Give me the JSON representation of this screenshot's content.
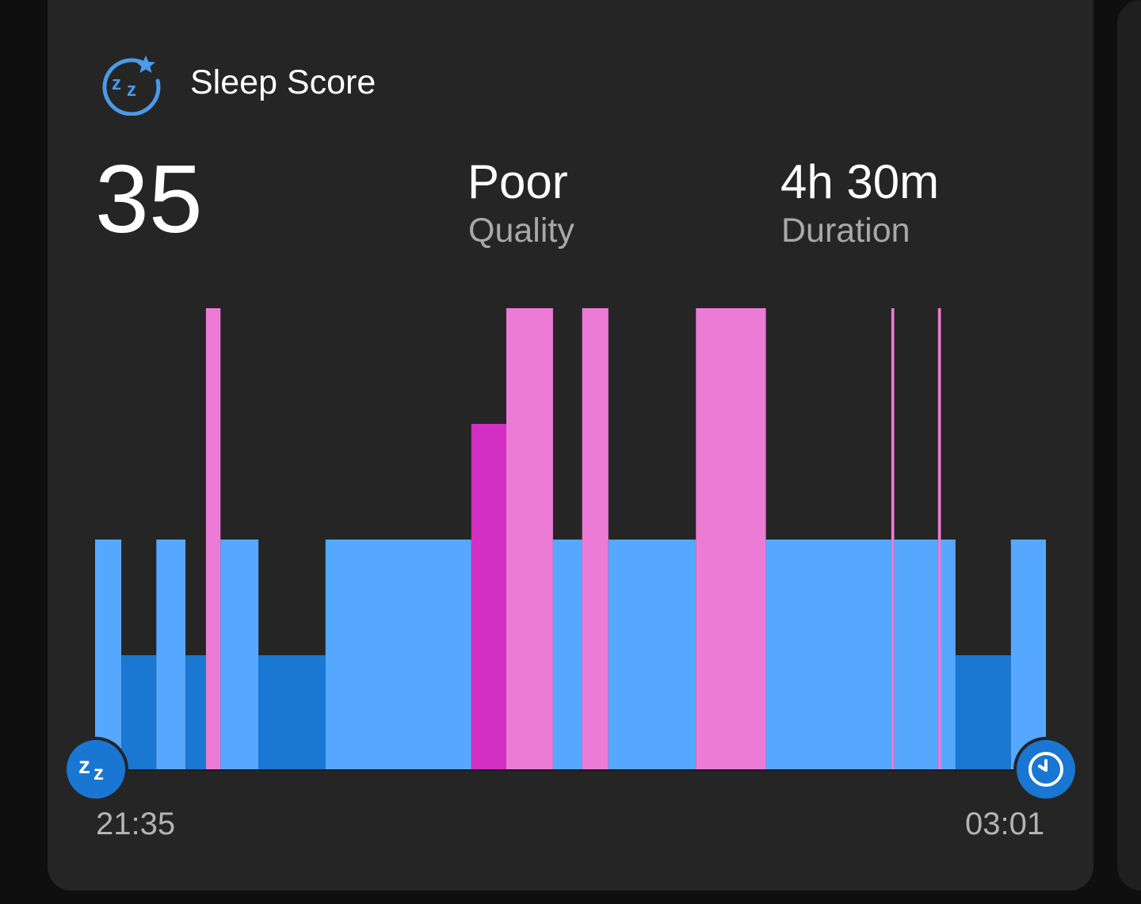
{
  "header": {
    "title": "Sleep Score",
    "icon": "sleep-score-icon"
  },
  "summary": {
    "score": "35",
    "quality_value": "Poor",
    "quality_label": "Quality",
    "duration_value": "4h 30m",
    "duration_label": "Duration"
  },
  "chart_data": {
    "type": "bar",
    "description_levels": [
      "light",
      "deep",
      "rem-light",
      "rem-deep"
    ],
    "start_label": "21:35",
    "end_label": "03:01",
    "start_minutes": 0,
    "end_minutes": 326,
    "colors": {
      "light": "#56a8ff",
      "deep": "#1a78d3",
      "rem": "#ec7bd6",
      "awake": "#d42fc4"
    },
    "segments": [
      {
        "start": 0,
        "end": 9,
        "stage": "light"
      },
      {
        "start": 9,
        "end": 21,
        "stage": "deep"
      },
      {
        "start": 21,
        "end": 31,
        "stage": "light"
      },
      {
        "start": 31,
        "end": 38,
        "stage": "deep"
      },
      {
        "start": 38,
        "end": 43,
        "stage": "rem"
      },
      {
        "start": 43,
        "end": 56,
        "stage": "light"
      },
      {
        "start": 56,
        "end": 79,
        "stage": "deep"
      },
      {
        "start": 79,
        "end": 129,
        "stage": "light"
      },
      {
        "start": 129,
        "end": 141,
        "stage": "awake"
      },
      {
        "start": 141,
        "end": 157,
        "stage": "rem"
      },
      {
        "start": 157,
        "end": 167,
        "stage": "light"
      },
      {
        "start": 167,
        "end": 176,
        "stage": "rem"
      },
      {
        "start": 176,
        "end": 206,
        "stage": "light"
      },
      {
        "start": 206,
        "end": 230,
        "stage": "rem"
      },
      {
        "start": 230,
        "end": 273,
        "stage": "light"
      },
      {
        "start": 273,
        "end": 274,
        "stage": "rem"
      },
      {
        "start": 274,
        "end": 289,
        "stage": "light"
      },
      {
        "start": 289,
        "end": 290,
        "stage": "rem"
      },
      {
        "start": 290,
        "end": 295,
        "stage": "light"
      },
      {
        "start": 295,
        "end": 314,
        "stage": "deep"
      },
      {
        "start": 314,
        "end": 326,
        "stage": "light"
      }
    ]
  },
  "markers": {
    "start_icon": "zz-sleep-icon",
    "end_icon": "clock-icon"
  }
}
